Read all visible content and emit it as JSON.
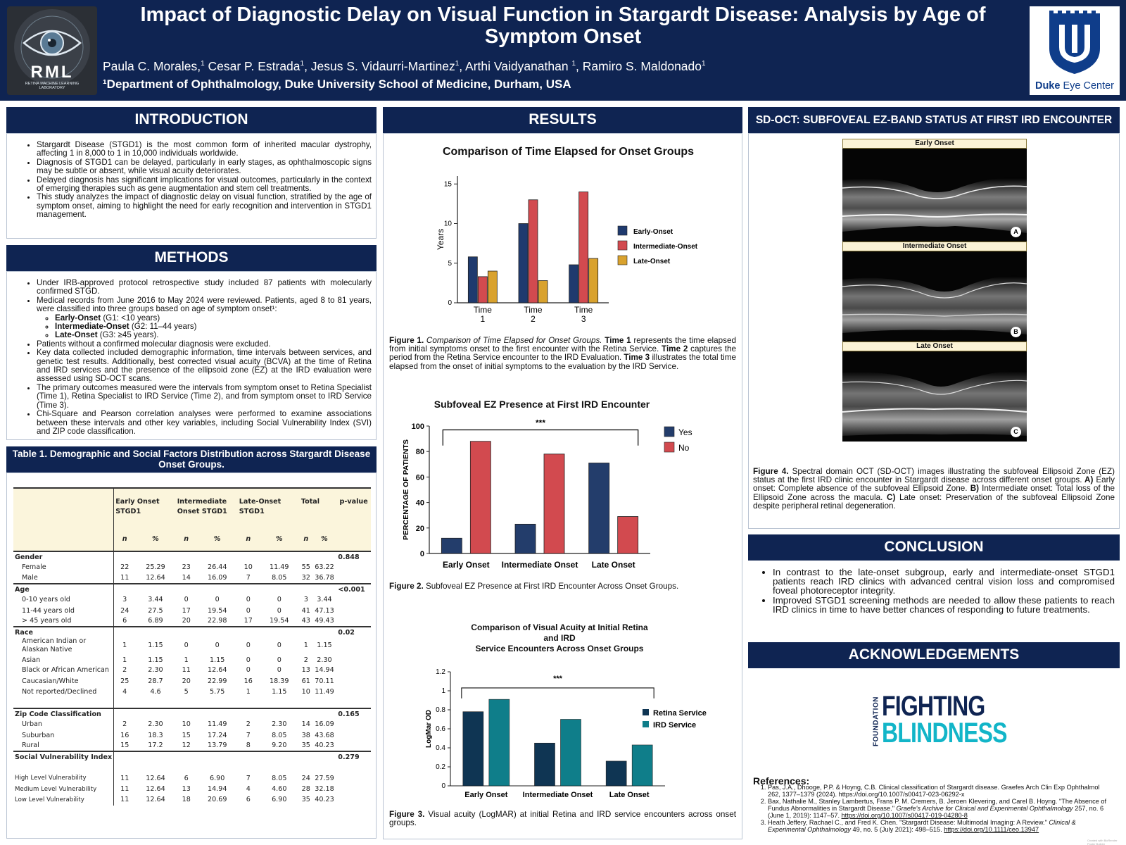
{
  "header": {
    "title": "Impact of Diagnostic Delay on Visual Function in Stargardt Disease: Analysis by Age of Symptom Onset",
    "authors": [
      {
        "name": "Paula C. Morales,",
        "sup": "1"
      },
      {
        "name": " Cesar P. Estrada",
        "sup": "1"
      },
      {
        "name": ", Jesus S. Vidaurri-Martinez",
        "sup": "1"
      },
      {
        "name": ", Arthi Vaidyanathan ",
        "sup": "1"
      },
      {
        "name": ", Ramiro S. Maldonado",
        "sup": "1"
      }
    ],
    "affiliation": "¹Department of Ophthalmology, Duke University School of Medicine, Durham, USA",
    "left_logo": {
      "text": "RML",
      "subtext": "RETINA MACHINE LEARNING LABORATORY",
      "icon": "eye-icon"
    },
    "right_logo": {
      "brand": "Duke",
      "suffix": " Eye Center",
      "icon": "duke-shield-icon",
      "color": "#0f3d8a"
    }
  },
  "introduction": {
    "heading": "INTRODUCTION",
    "bullets": [
      "Stargardt Disease (STGD1) is the most common form of inherited macular dystrophy, affecting 1 in 8,000 to 1 in 10,000 individuals worldwide.",
      "Diagnosis of STGD1 can be delayed, particularly in early stages, as ophthalmoscopic signs may be subtle or absent, while visual acuity deteriorates.",
      "Delayed diagnosis has significant implications for visual outcomes, particularly in the context of emerging therapies such as gene augmentation and stem cell treatments.",
      "This study analyzes the impact of diagnostic delay on visual function, stratified by the age of symptom onset, aiming to highlight the need for early recognition and intervention in STGD1 management."
    ]
  },
  "methods": {
    "heading": "METHODS",
    "b1": "Under IRB-approved protocol retrospective study included 87 patients with molecularly confirmed STGD.",
    "b2": "Medical records from June 2016 to May 2024 were reviewed. Patients, aged 8 to 81 years, were classified into three groups based on age of symptom onset¹:",
    "groups": [
      {
        "name": "Early-Onset",
        "desc": " (G1: <10 years)"
      },
      {
        "name": "Intermediate-Onset",
        "desc": " (G2: 11–44 years)"
      },
      {
        "name": "Late-Onset",
        "desc": " (G3: ≥45 years)."
      }
    ],
    "b3": "Patients without a confirmed molecular diagnosis were excluded.",
    "b4": "Key data collected included demographic information, time intervals between services, and genetic test results. Additionally, best corrected visual acuity (BCVA) at the time of Retina and IRD services and the presence of the ellipsoid zone (EZ) at the IRD evaluation were assessed using SD-OCT scans.",
    "b5": "The primary outcomes measured were the intervals from symptom onset to Retina Specialist (Time 1), Retina Specialist to IRD Service (Time 2), and from symptom onset to IRD Service (Time 3).",
    "b6": "Chi-Square and Pearson correlation analyses were performed to examine associations between these intervals and other key variables, including Social Vulnerability Index (SVI) and ZIP code classification."
  },
  "table": {
    "heading": "Table 1. Demographic and Social Factors Distribution across Stargardt Disease Onset Groups.",
    "col_groups": [
      "Early Onset STGD1",
      "Intermediate Onset STGD1",
      "Late-Onset STGD1",
      "Total",
      "p-value"
    ],
    "sub_headers": [
      "n",
      "%",
      "n",
      "%",
      "n",
      "%",
      "n",
      "%"
    ],
    "rows": [
      {
        "type": "section",
        "label": "Gender",
        "p": "0.848",
        "line": true
      },
      {
        "type": "row",
        "label": "Female",
        "v": [
          "22",
          "25.29",
          "23",
          "26.44",
          "10",
          "11.49",
          "55",
          "63.22"
        ]
      },
      {
        "type": "row",
        "label": "Male",
        "v": [
          "11",
          "12.64",
          "14",
          "16.09",
          "7",
          "8.05",
          "32",
          "36.78"
        ]
      },
      {
        "type": "section",
        "label": "Age",
        "p": "<0.001",
        "line": true
      },
      {
        "type": "row",
        "label": "0-10 years old",
        "v": [
          "3",
          "3.44",
          "0",
          "0",
          "0",
          "0",
          "3",
          "3.44"
        ]
      },
      {
        "type": "row",
        "label": "11-44 years old",
        "v": [
          "24",
          "27.5",
          "17",
          "19.54",
          "0",
          "0",
          "41",
          "47.13"
        ]
      },
      {
        "type": "row",
        "label": "> 45 years old",
        "v": [
          "6",
          "6.89",
          "20",
          "22.98",
          "17",
          "19.54",
          "43",
          "49.43"
        ]
      },
      {
        "type": "section",
        "label": "Race",
        "p": "0.02",
        "line": true
      },
      {
        "type": "row",
        "label": "American Indian or Alaskan Native",
        "v": [
          "1",
          "1.15",
          "0",
          "0",
          "0",
          "0",
          "1",
          "1.15"
        ],
        "tall": true
      },
      {
        "type": "row",
        "label": "Asian",
        "v": [
          "1",
          "1.15",
          "1",
          "1.15",
          "0",
          "0",
          "2",
          "2.30"
        ]
      },
      {
        "type": "row",
        "label": "Black or African American",
        "v": [
          "2",
          "2.30",
          "11",
          "12.64",
          "0",
          "0",
          "13",
          "14.94"
        ],
        "tall": true
      },
      {
        "type": "row",
        "label": "Caucasian/White",
        "v": [
          "25",
          "28.7",
          "20",
          "22.99",
          "16",
          "18.39",
          "61",
          "70.11"
        ]
      },
      {
        "type": "row",
        "label": "Not reported/Declined",
        "v": [
          "4",
          "4.6",
          "5",
          "5.75",
          "1",
          "1.15",
          "10",
          "11.49"
        ]
      },
      {
        "type": "spacer"
      },
      {
        "type": "section",
        "label": "Zip Code Classification",
        "p": "0.165",
        "line": true
      },
      {
        "type": "row",
        "label": "Urban",
        "v": [
          "2",
          "2.30",
          "10",
          "11.49",
          "2",
          "2.30",
          "14",
          "16.09"
        ]
      },
      {
        "type": "row",
        "label": "Suburban",
        "v": [
          "16",
          "18.3",
          "15",
          "17.24",
          "7",
          "8.05",
          "38",
          "43.68"
        ]
      },
      {
        "type": "row",
        "label": "Rural",
        "v": [
          "15",
          "17.2",
          "12",
          "13.79",
          "8",
          "9.20",
          "35",
          "40.23"
        ]
      },
      {
        "type": "section",
        "label": "Social Vulnerability Index",
        "p": "0.279",
        "line": true
      },
      {
        "type": "spacer"
      },
      {
        "type": "row",
        "label": "High Level Vulnerability",
        "v": [
          "11",
          "12.64",
          "6",
          "6.90",
          "7",
          "8.05",
          "24",
          "27.59"
        ],
        "noind": true
      },
      {
        "type": "row",
        "label": "Medium Level Vulnerability",
        "v": [
          "11",
          "12.64",
          "13",
          "14.94",
          "4",
          "4.60",
          "28",
          "32.18"
        ],
        "noind": true
      },
      {
        "type": "row",
        "label": "Low Level Vulnerability",
        "v": [
          "11",
          "12.64",
          "18",
          "20.69",
          "6",
          "6.90",
          "35",
          "40.23"
        ],
        "noind": true
      }
    ]
  },
  "results": {
    "heading": "RESULTS",
    "fig1": {
      "title": "Comparison of Time Elapsed for Onset Groups",
      "caption_label": "Figure 1.",
      "caption_italic": " Comparison of Time Elapsed for Onset Groups.",
      "caption_parts": [
        {
          "b": " Time 1",
          "t": " represents the time elapsed from initial symptoms onset to the first encounter with the Retina Service."
        },
        {
          "b": " Time 2",
          "t": " captures the period from the Retina Service encounter to the IRD Evaluation."
        },
        {
          "b": " Time 3",
          "t": " illustrates the total time elapsed from the onset of initial symptoms to the evaluation by the IRD Service."
        }
      ]
    },
    "fig2": {
      "title": "Subfoveal EZ Presence at First IRD Encounter",
      "caption_label": "Figure 2.",
      "caption": " Subfoveal EZ Presence at First IRD Encounter Across Onset Groups."
    },
    "fig3": {
      "title_lines": [
        "Comparison of Visual Acuity at Initial Retina",
        "and IRD",
        "Service Encounters Across Onset Groups"
      ],
      "caption_label": "Figure 3.",
      "caption": " Visual acuity (LogMAR) at initial Retina and IRD service encounters across onset groups."
    }
  },
  "oct": {
    "heading": "SD-OCT: SUBFOVEAL EZ-BAND STATUS AT FIRST  IRD ENCOUNTER",
    "panels": [
      {
        "label": "Early Onset",
        "tag": "A"
      },
      {
        "label": "Intermediate Onset",
        "tag": "B"
      },
      {
        "label": "Late Onset",
        "tag": "C"
      }
    ],
    "caption_label": "Figure 4.",
    "caption_parts": [
      {
        "b": "",
        "t": " Spectral domain OCT (SD-OCT) images illustrating the subfoveal Ellipsoid Zone (EZ) status at the first IRD clinic encounter in Stargardt disease across different onset groups."
      },
      {
        "b": " A)",
        "t": " Early onset: Complete absence of the subfoveal Ellipsoid Zone."
      },
      {
        "b": " B)",
        "t": " Intermediate onset: Total loss of the Ellipsoid Zone across the macula."
      },
      {
        "b": " C)",
        "t": " Late onset: Preservation of the subfoveal Ellipsoid Zone despite peripheral retinal degeneration."
      }
    ]
  },
  "conclusion": {
    "heading": "CONCLUSION",
    "bullets": [
      "In contrast to the late-onset subgroup, early and intermediate-onset STGD1 patients reach IRD clinics with advanced central vision loss and compromised foveal photoreceptor integrity.",
      "Improved STGD1 screening methods are needed to allow these patients to reach IRD clinics in time to have better chances of responding to future treatments."
    ]
  },
  "acknowledgements": {
    "heading": "ACKNOWLEDGEMENTS",
    "logo_side": "FOUNDATION",
    "logo_line1": "FIGHTING",
    "logo_line2": "BLINDNESS"
  },
  "references": {
    "heading": "References:",
    "items": [
      {
        "pre": "Pas, J.A., Dhooge, P.P. & Hoyng, C.B. Clinical classification of Stargardt disease. Graefes Arch Clin Exp Ophthalmol 262, 1377–1379 (2024). https://doi.org/10.1007/s00417-023-06292-x",
        "journal": "",
        "post": "",
        "link": ""
      },
      {
        "pre": "Bax, Nathalie M., Stanley Lambertus, Frans P. M. Cremers, B. Jeroen Klevering, and Carel B. Hoyng. \"The Absence of Fundus Abnormalities in Stargardt Disease.\" ",
        "journal": "Graefe's Archive for Clinical and Experimental Ophthalmology",
        "post": " 257, no. 6 (June 1, 2019): 1147–57. ",
        "link": "https://doi.org/10.1007/s00417-019-04280-8"
      },
      {
        "pre": "Heath Jeffery, Rachael C., and Fred K. Chen. \"Stargardt Disease: Multimodal Imaging: A Review.\" ",
        "journal": "Clinical & Experimental Ophthalmology",
        "post": " 49, no. 5 (July 2021): 498–515. ",
        "link": "https://doi.org/10.1111/ceo.13947"
      }
    ]
  },
  "credit": "Created with BioRender Poster Builder",
  "colors": {
    "navy": "#0f2452",
    "early": "#1f3a6e",
    "intermediate": "#d24a4f",
    "late": "#d9a22e",
    "yes": "#233d6b",
    "no": "#d24a4f",
    "retina": "#0f3553",
    "ird": "#0f7e8a"
  },
  "chart_data": [
    {
      "type": "bar",
      "title": "Comparison of Time Elapsed for Onset Groups",
      "categories": [
        "Time 1",
        "Time 2",
        "Time 3"
      ],
      "series": [
        {
          "name": "Early-Onset",
          "values": [
            5.8,
            10.0,
            4.8
          ]
        },
        {
          "name": "Intermediate-Onset",
          "values": [
            3.3,
            13.0,
            14.0
          ]
        },
        {
          "name": "Late-Onset",
          "values": [
            4.0,
            2.8,
            5.6
          ]
        }
      ],
      "xlabel": "",
      "ylabel": "Years",
      "ylim": [
        0,
        16
      ],
      "yticks": [
        0,
        5,
        10,
        15
      ],
      "legend": "right"
    },
    {
      "type": "bar",
      "title": "Subfoveal EZ Presence at First IRD Encounter",
      "categories": [
        "Early Onset",
        "Intermediate Onset",
        "Late Onset"
      ],
      "series": [
        {
          "name": "Yes",
          "values": [
            12,
            23,
            71
          ]
        },
        {
          "name": "No",
          "values": [
            88,
            78,
            29
          ]
        }
      ],
      "xlabel": "",
      "ylabel": "PERCENTAGE OF PATIENTS",
      "ylim": [
        0,
        100
      ],
      "yticks": [
        0,
        20,
        40,
        60,
        80,
        100
      ],
      "annotation": "***",
      "legend": "top-right"
    },
    {
      "type": "bar",
      "title": "Comparison of Visual Acuity at Initial Retina and IRD Service Encounters Across Onset Groups",
      "categories": [
        "Early Onset",
        "Intermediate Onset",
        "Late Onset"
      ],
      "series": [
        {
          "name": "Retina Service",
          "values": [
            0.78,
            0.45,
            0.26
          ]
        },
        {
          "name": "IRD Service",
          "values": [
            0.91,
            0.7,
            0.43
          ]
        }
      ],
      "xlabel": "",
      "ylabel": "LogMar OD",
      "ylim": [
        0,
        1.2
      ],
      "yticks": [
        "0",
        "0.2",
        "0.4",
        "0.6",
        "0.8",
        "1",
        "1.2"
      ],
      "annotation": "***",
      "legend": "right"
    }
  ]
}
